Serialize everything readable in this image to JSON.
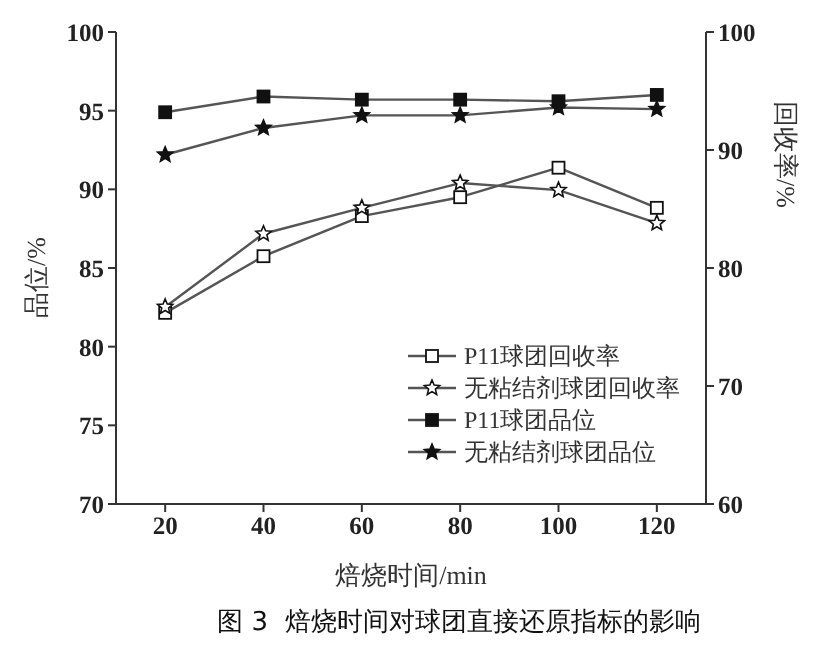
{
  "chart_data": {
    "type": "line",
    "xlabel": "焙烧时间/min",
    "ylabel": "品位/%",
    "y2label": "回收率/%",
    "x": [
      20,
      40,
      60,
      80,
      100,
      120
    ],
    "xlim": [
      10,
      130
    ],
    "xticks": [
      20,
      40,
      60,
      80,
      100,
      120
    ],
    "ylim": [
      70,
      100
    ],
    "yticks": [
      70,
      75,
      80,
      85,
      90,
      95,
      100
    ],
    "y2lim": [
      60,
      100
    ],
    "y2ticks": [
      60,
      70,
      80,
      90,
      100
    ],
    "grid": false,
    "legend": "bottom right",
    "line_style": "solid",
    "series": [
      {
        "name": "P11球团回收率",
        "color": "#555555",
        "axis": "y2",
        "marker": "square",
        "values": [
          76.2,
          81.0,
          84.4,
          86.0,
          88.5,
          85.1
        ]
      },
      {
        "name": "无粘结剂球团回收率",
        "color": "#555555",
        "axis": "y2",
        "marker": "star",
        "values": [
          76.7,
          82.9,
          85.1,
          87.2,
          86.6,
          83.8
        ]
      },
      {
        "name": "P11球团品位",
        "color": "#555555",
        "axis": "y",
        "marker": "square",
        "values": [
          94.9,
          95.9,
          95.7,
          95.7,
          95.6,
          96.0
        ]
      },
      {
        "name": "无粘结剂球团品位",
        "color": "#555555",
        "axis": "y",
        "marker": "star",
        "values": [
          92.2,
          93.9,
          94.7,
          94.7,
          95.2,
          95.1
        ]
      }
    ],
    "annotations": [
      "图 3  焙烧时间对球团直接还原指标的影响"
    ]
  }
}
